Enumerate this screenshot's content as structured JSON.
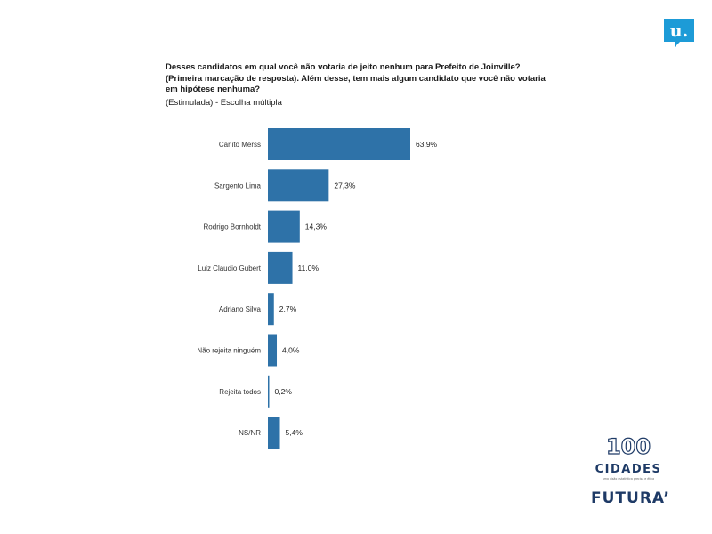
{
  "header": {
    "title": "Desses candidatos em qual você não votaria de jeito nenhum para Prefeito de Joinville? (Primeira marcação de resposta). Além desse, tem mais algum candidato que você não votaria em hipótese nenhuma?",
    "subtitle": "(Estimulada) - Escolha múltipla"
  },
  "branding": {
    "top_logo_letter": "u.",
    "badge_number": "100",
    "badge_word": "CIDADES",
    "badge_tagline": "uma visão estatística precisa e ética",
    "footer_brand": "FUTURA’"
  },
  "colors": {
    "bar": "#2e72a8",
    "brand_blue": "#1d9bd7",
    "logo_navy": "#1e3a66"
  },
  "chart_data": {
    "type": "bar",
    "orientation": "horizontal",
    "categories": [
      "Carlito Merss",
      "Sargento Lima",
      "Rodrigo Bornholdt",
      "Luiz Claudio Gubert",
      "Adriano Silva",
      "Não rejeita ninguém",
      "Rejeita todos",
      "NS/NR"
    ],
    "values": [
      63.9,
      27.3,
      14.3,
      11.0,
      2.7,
      4.0,
      0.2,
      5.4
    ],
    "value_labels": [
      "63,9%",
      "27,3%",
      "14,3%",
      "11,0%",
      "2,7%",
      "4,0%",
      "0,2%",
      "5,4%"
    ],
    "xlim": [
      0,
      100
    ],
    "grid": false,
    "legend": "none"
  }
}
